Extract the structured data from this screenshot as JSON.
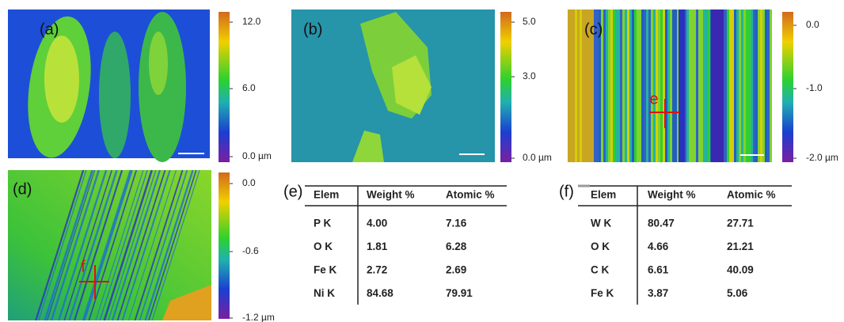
{
  "panels": [
    {
      "label": "(a)",
      "colorbar_ticks": [
        "12.0",
        "6.0",
        "0.0 µm"
      ]
    },
    {
      "label": "(b)",
      "colorbar_ticks": [
        "5.0",
        "3.0",
        "0.0 µm"
      ]
    },
    {
      "label": "(c)",
      "colorbar_ticks": [
        "0.0",
        "-1.0",
        "-2.0 µm"
      ]
    },
    {
      "label": "(d)",
      "colorbar_ticks": [
        "0.0",
        "-0.6",
        "-1.2 µm"
      ]
    }
  ],
  "markers": [
    "e",
    "f"
  ],
  "tables": [
    {
      "label": "(e)",
      "header": [
        "Elem",
        "Weight %",
        "Atomic %"
      ],
      "rows": [
        [
          "P K",
          "4.00",
          "7.16"
        ],
        [
          "O K",
          "1.81",
          "6.28"
        ],
        [
          "Fe K",
          "2.72",
          "2.69"
        ],
        [
          "Ni K",
          "84.68",
          "79.91"
        ]
      ]
    },
    {
      "label": "(f)",
      "header": [
        "Elem",
        "Weight %",
        "Atomic %"
      ],
      "rows": [
        [
          "W K",
          "80.47",
          "27.71"
        ],
        [
          "O K",
          "4.66",
          "21.21"
        ],
        [
          "C K",
          "6.61",
          "40.09"
        ],
        [
          "Fe K",
          "3.87",
          "5.06"
        ]
      ]
    }
  ]
}
